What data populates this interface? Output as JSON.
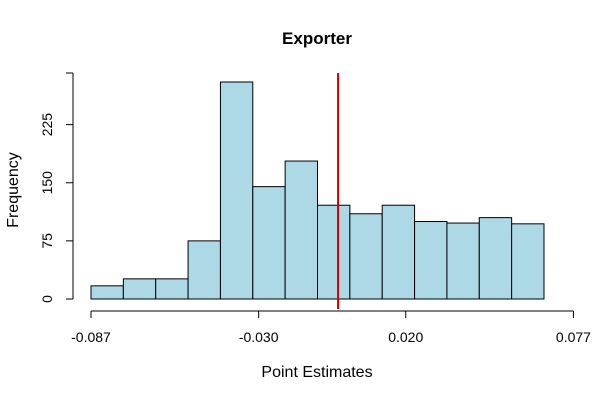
{
  "chart_data": {
    "type": "bar",
    "title": "Exporter",
    "xlabel": "Point Estimates",
    "ylabel": "Frequency",
    "bar_color": "#add8e6",
    "reference_line_color": "#cc0000",
    "x_ticks": [
      "-0.087",
      "-0.030",
      "0.020",
      "0.077"
    ],
    "y_ticks": [
      "0",
      "75",
      "150",
      "225"
    ],
    "ylim": [
      0,
      280
    ],
    "bins": [
      {
        "lo": -0.087,
        "hi": -0.076,
        "value": 17
      },
      {
        "lo": -0.076,
        "hi": -0.065,
        "value": 26
      },
      {
        "lo": -0.065,
        "hi": -0.054,
        "value": 26
      },
      {
        "lo": -0.054,
        "hi": -0.043,
        "value": 75
      },
      {
        "lo": -0.043,
        "hi": -0.032,
        "value": 280
      },
      {
        "lo": -0.032,
        "hi": -0.021,
        "value": 145
      },
      {
        "lo": -0.021,
        "hi": -0.01,
        "value": 178
      },
      {
        "lo": -0.01,
        "hi": 0.001,
        "value": 121
      },
      {
        "lo": 0.001,
        "hi": 0.012,
        "value": 110
      },
      {
        "lo": 0.012,
        "hi": 0.023,
        "value": 121
      },
      {
        "lo": 0.023,
        "hi": 0.034,
        "value": 100
      },
      {
        "lo": 0.034,
        "hi": 0.045,
        "value": 98
      },
      {
        "lo": 0.045,
        "hi": 0.056,
        "value": 105
      },
      {
        "lo": 0.056,
        "hi": 0.067,
        "value": 97
      }
    ],
    "reference_line_x": -0.003
  }
}
